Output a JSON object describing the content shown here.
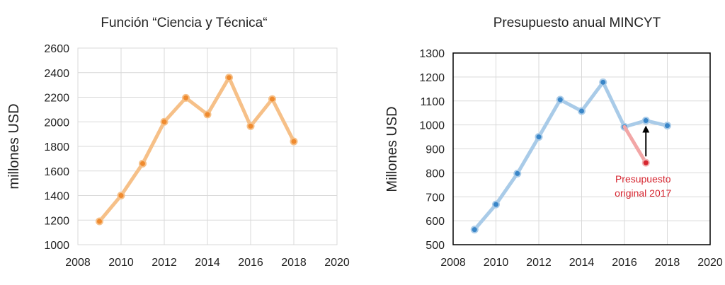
{
  "chart_data": [
    {
      "type": "line",
      "title": "Función “Ciencia y Técnica“",
      "ylabel": "millones USD",
      "xlabel": "",
      "xlim": [
        2008,
        2020
      ],
      "ylim": [
        1000,
        2600
      ],
      "xticks": [
        2008,
        2010,
        2012,
        2014,
        2016,
        2018,
        2020
      ],
      "yticks": [
        1000,
        1200,
        1400,
        1600,
        1800,
        2000,
        2200,
        2400,
        2600
      ],
      "grid": true,
      "series": [
        {
          "x": [
            2009,
            2010,
            2011,
            2012,
            2013,
            2014,
            2015,
            2016,
            2017,
            2018
          ],
          "y": [
            1190,
            1400,
            1660,
            2000,
            2195,
            2060,
            2360,
            1965,
            2185,
            1840
          ],
          "line_color": "#f6c088",
          "marker_color": "#ef8a2e"
        }
      ]
    },
    {
      "type": "line",
      "title": "Presupuesto anual MINCYT",
      "ylabel": "Millones USD",
      "xlabel": "",
      "xlim": [
        2008,
        2020
      ],
      "ylim": [
        500,
        1300
      ],
      "xticks": [
        2008,
        2010,
        2012,
        2014,
        2016,
        2018,
        2020
      ],
      "yticks": [
        500,
        600,
        700,
        800,
        900,
        1000,
        1100,
        1200,
        1300
      ],
      "grid": true,
      "series": [
        {
          "x": [
            2009,
            2010,
            2011,
            2012,
            2013,
            2014,
            2015,
            2016,
            2017,
            2018
          ],
          "y": [
            563,
            668,
            797,
            950,
            1105,
            1058,
            1178,
            992,
            1018,
            997
          ],
          "line_color": "#a9cbe8",
          "marker_color": "#3a86c8"
        }
      ],
      "annotation": {
        "text_lines": [
          "Presupuesto",
          "original 2017"
        ],
        "x": 2017,
        "y": 842,
        "from_x": 2016,
        "from_y": 992,
        "arrow_to_y": 1018,
        "point_color": "#d62630",
        "link_color": "#f2a6a6",
        "text_color": "#d62630"
      }
    }
  ]
}
